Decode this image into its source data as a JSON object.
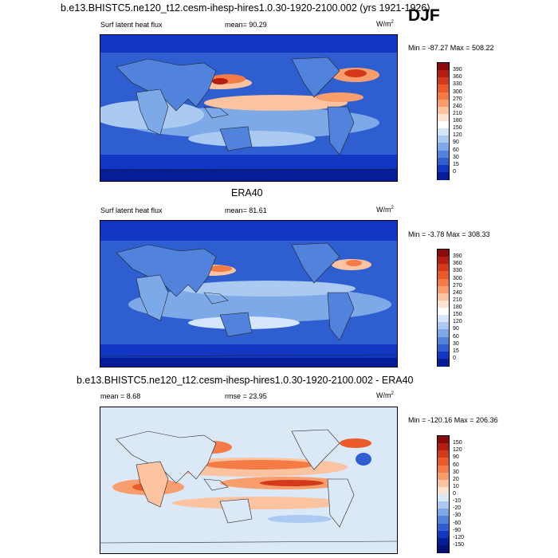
{
  "header": {
    "title": "b.e13.BHISTC5.ne120_t12.cesm-ihesp-hires1.0.30-1920-2100.002 (yrs 1921-1926)",
    "season": "DJF"
  },
  "panels": [
    {
      "title": "",
      "left_label": "Surf latent heat flux",
      "mean_text": "mean=  90.29",
      "units": "W/m",
      "units_sup": "2",
      "minmax": "Min = -87.27 Max = 508.22"
    },
    {
      "title": "ERA40",
      "left_label": "Surf latent heat flux",
      "mean_text": "mean=  81.61",
      "units": "W/m",
      "units_sup": "2",
      "minmax": "Min =  -3.78 Max = 308.33"
    },
    {
      "title": "b.e13.BHISTC5.ne120_t12.cesm-ihesp-hires1.0.30-1920-2100.002 - ERA40",
      "left_label": "mean =  8.68",
      "mean_text": "rmse =  23.95",
      "units": "W/m",
      "units_sup": "2",
      "minmax": "Min = -120.16 Max = 206.36"
    }
  ],
  "colorbars": {
    "abs": {
      "labels": [
        "390",
        "360",
        "330",
        "300",
        "270",
        "240",
        "210",
        "180",
        "150",
        "120",
        "90",
        "60",
        "30",
        "15",
        "0"
      ],
      "colors": [
        "#8b0a0a",
        "#b31d12",
        "#d43a1a",
        "#ea5b29",
        "#f47b45",
        "#f89e6d",
        "#fbc3a0",
        "#fde3cf",
        "#ffffff",
        "#d6e6fa",
        "#aacaf2",
        "#7ea9e8",
        "#5283dc",
        "#2e5ed0",
        "#1137c2",
        "#061d9a"
      ]
    },
    "diff": {
      "labels": [
        "150",
        "120",
        "90",
        "60",
        "30",
        "20",
        "10",
        "0",
        "-10",
        "-20",
        "-30",
        "-60",
        "-90",
        "-120",
        "-150"
      ],
      "colors": [
        "#8b0a0a",
        "#b31d12",
        "#d43a1a",
        "#ea5b29",
        "#f47b45",
        "#f89e6d",
        "#fbc3a0",
        "#fde3cf",
        "#dbe8f7",
        "#aacaf2",
        "#7ea9e8",
        "#5283dc",
        "#2e5ed0",
        "#1137c2",
        "#061d9a",
        "#03126e"
      ]
    }
  }
}
